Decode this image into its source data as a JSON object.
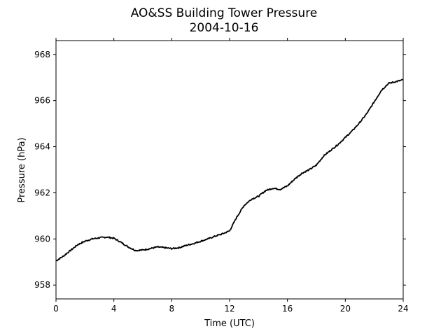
{
  "chart_data": {
    "type": "line",
    "title": "AO&SS Building Tower Pressure",
    "subtitle": "2004-10-16",
    "xlabel": "Time (UTC)",
    "ylabel": "Pressure (hPa)",
    "xlim": [
      0,
      24
    ],
    "ylim": [
      957.4,
      968.6
    ],
    "xticks": [
      0,
      4,
      8,
      12,
      16,
      20,
      24
    ],
    "yticks": [
      958,
      960,
      962,
      964,
      966,
      968
    ],
    "grid": false,
    "line_color": "#000000",
    "series": [
      {
        "x": [
          0,
          0.5,
          1,
          1.5,
          2,
          2.5,
          3,
          3.5,
          4,
          4.5,
          5,
          5.5,
          6,
          6.5,
          7,
          7.5,
          8,
          8.5,
          9,
          9.5,
          10,
          10.5,
          11,
          11.5,
          12,
          12.5,
          13,
          13.5,
          14,
          14.5,
          15,
          15.5,
          16,
          16.5,
          17,
          17.5,
          18,
          18.5,
          19,
          19.5,
          20,
          20.5,
          21,
          21.5,
          22,
          22.5,
          23,
          23.5,
          24
        ],
        "y": [
          959.05,
          959.25,
          959.5,
          959.75,
          959.9,
          960.0,
          960.05,
          960.08,
          960.03,
          959.85,
          959.65,
          959.5,
          959.52,
          959.58,
          959.65,
          959.62,
          959.58,
          959.62,
          959.72,
          959.8,
          959.9,
          960.0,
          960.12,
          960.22,
          960.35,
          960.95,
          961.45,
          961.72,
          961.85,
          962.1,
          962.2,
          962.15,
          962.3,
          962.6,
          962.85,
          963.0,
          963.2,
          963.6,
          963.85,
          964.1,
          964.4,
          964.7,
          965.05,
          965.45,
          965.95,
          966.45,
          966.75,
          966.82,
          966.9
        ]
      }
    ]
  }
}
